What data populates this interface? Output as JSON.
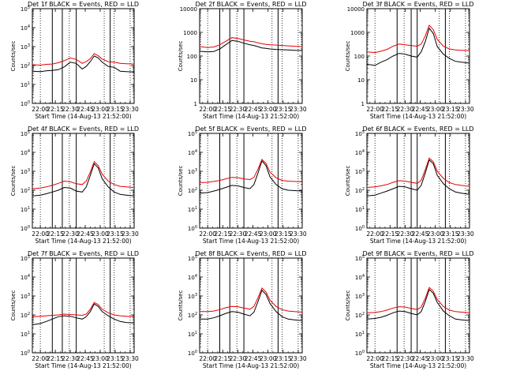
{
  "figure": {
    "x_axis_label": "Start Time (14-Aug-13 21:52:00)",
    "y_axis_label": "Counts/sec",
    "time_ticks": [
      "22:00",
      "22:15",
      "22:30",
      "22:45",
      "23:00",
      "23:15",
      "23:30"
    ],
    "colors": {
      "events": "#000000",
      "lld": "#e60000"
    }
  },
  "chart_data": [
    {
      "type": "line",
      "title": "Det 1f BLACK = Events, RED = LLD",
      "xlabel": "Start Time (14-Aug-13 21:52:00)",
      "ylabel": "Counts/sec",
      "xlim": [
        "21:52",
        "23:34"
      ],
      "ylim": [
        1,
        100000
      ],
      "yscale": "log",
      "ytick_exponents": [
        0,
        1,
        2,
        3,
        4,
        5
      ],
      "ytick_labels": [
        "10^0",
        "10^1",
        "10^2",
        "10^3",
        "10^4",
        "10^5"
      ],
      "x": [
        "21:52",
        "22:00",
        "22:06",
        "22:12",
        "22:18",
        "22:24",
        "22:30",
        "22:36",
        "22:42",
        "22:46",
        "22:50",
        "22:54",
        "22:58",
        "23:02",
        "23:08",
        "23:14",
        "23:20",
        "23:26",
        "23:34"
      ],
      "series": [
        {
          "name": "BLACK = Events",
          "values": [
            50,
            48,
            52,
            55,
            60,
            85,
            150,
            130,
            65,
            90,
            160,
            320,
            250,
            150,
            90,
            80,
            50,
            48,
            45
          ]
        },
        {
          "name": "RED = LLD",
          "values": [
            110,
            105,
            115,
            120,
            140,
            180,
            250,
            210,
            130,
            160,
            230,
            420,
            330,
            220,
            160,
            150,
            130,
            125,
            120
          ]
        }
      ],
      "vlines_solid": [
        "22:12",
        "22:22",
        "22:36",
        "23:10"
      ],
      "vlines_dotted": [
        "22:00",
        "22:29",
        "23:04",
        "23:14",
        "23:30"
      ]
    },
    {
      "type": "line",
      "title": "Det 2f BLACK = Events, RED = LLD",
      "xlabel": "Start Time (14-Aug-13 21:52:00)",
      "ylabel": "Counts/sec",
      "xlim": [
        "21:52",
        "23:34"
      ],
      "ylim": [
        1,
        10000
      ],
      "yscale": "log",
      "ytick_labels": [
        "1",
        "10",
        "100",
        "1000",
        "10000"
      ],
      "x": [
        "21:52",
        "22:00",
        "22:06",
        "22:12",
        "22:18",
        "22:24",
        "22:30",
        "22:36",
        "22:42",
        "22:46",
        "22:50",
        "22:54",
        "22:58",
        "23:02",
        "23:08",
        "23:14",
        "23:20",
        "23:26",
        "23:34"
      ],
      "series": [
        {
          "name": "BLACK = Events",
          "values": [
            160,
            150,
            155,
            200,
            300,
            450,
            420,
            350,
            300,
            280,
            250,
            220,
            210,
            200,
            190,
            185,
            180,
            175,
            170
          ]
        },
        {
          "name": "RED = LLD",
          "values": [
            250,
            230,
            240,
            300,
            420,
            600,
            560,
            480,
            420,
            400,
            360,
            330,
            310,
            300,
            290,
            280,
            270,
            260,
            250
          ]
        }
      ],
      "vlines_solid": [
        "22:12",
        "22:22",
        "22:36",
        "23:10"
      ],
      "vlines_dotted": [
        "22:00",
        "22:29",
        "23:04",
        "23:14",
        "23:30"
      ]
    },
    {
      "type": "line",
      "title": "Det 3f BLACK = Events, RED = LLD",
      "xlabel": "Start Time (14-Aug-13 21:52:00)",
      "ylabel": "Counts/sec",
      "xlim": [
        "21:52",
        "23:34"
      ],
      "ylim": [
        1,
        10000
      ],
      "yscale": "log",
      "ytick_labels": [
        "1",
        "10",
        "100",
        "1000",
        "10000"
      ],
      "x": [
        "21:52",
        "22:00",
        "22:06",
        "22:12",
        "22:18",
        "22:24",
        "22:30",
        "22:36",
        "22:42",
        "22:46",
        "22:50",
        "22:54",
        "22:58",
        "23:02",
        "23:08",
        "23:14",
        "23:20",
        "23:26",
        "23:34"
      ],
      "series": [
        {
          "name": "BLACK = Events",
          "values": [
            45,
            40,
            55,
            70,
            100,
            130,
            120,
            100,
            90,
            150,
            400,
            1500,
            900,
            250,
            120,
            80,
            60,
            55,
            50
          ]
        },
        {
          "name": "RED = LLD",
          "values": [
            150,
            140,
            160,
            190,
            260,
            320,
            300,
            280,
            260,
            320,
            700,
            2000,
            1300,
            500,
            260,
            200,
            180,
            175,
            170
          ]
        }
      ],
      "vlines_solid": [
        "22:22",
        "22:36",
        "22:42",
        "23:10"
      ],
      "vlines_dotted": [
        "22:00",
        "22:29",
        "23:04",
        "23:14",
        "23:30"
      ]
    },
    {
      "type": "line",
      "title": "Det 4f BLACK = Events, RED = LLD",
      "xlabel": "Start Time (14-Aug-13 21:52:00)",
      "ylabel": "Counts/sec",
      "xlim": [
        "21:52",
        "23:34"
      ],
      "ylim": [
        1,
        100000
      ],
      "yscale": "log",
      "ytick_exponents": [
        0,
        1,
        2,
        3,
        4,
        5
      ],
      "ytick_labels": [
        "10^0",
        "10^1",
        "10^2",
        "10^3",
        "10^4",
        "10^5"
      ],
      "x": [
        "21:52",
        "22:00",
        "22:06",
        "22:12",
        "22:18",
        "22:24",
        "22:30",
        "22:36",
        "22:42",
        "22:46",
        "22:50",
        "22:54",
        "22:58",
        "23:02",
        "23:08",
        "23:14",
        "23:20",
        "23:26",
        "23:34"
      ],
      "series": [
        {
          "name": "BLACK = Events",
          "values": [
            50,
            55,
            65,
            80,
            100,
            140,
            130,
            90,
            80,
            150,
            600,
            2500,
            1500,
            400,
            150,
            80,
            60,
            55,
            50
          ]
        },
        {
          "name": "RED = LLD",
          "values": [
            120,
            130,
            150,
            180,
            230,
            300,
            280,
            220,
            200,
            300,
            900,
            3200,
            2000,
            700,
            300,
            200,
            160,
            150,
            140
          ]
        }
      ],
      "vlines_solid": [
        "22:12",
        "22:22",
        "22:36",
        "23:10"
      ],
      "vlines_dotted": [
        "22:00",
        "22:29",
        "23:04",
        "23:14",
        "23:30"
      ]
    },
    {
      "type": "line",
      "title": "Det 5f BLACK = Events, RED = LLD",
      "xlabel": "Start Time (14-Aug-13 21:52:00)",
      "ylabel": "Counts/sec",
      "xlim": [
        "21:52",
        "23:34"
      ],
      "ylim": [
        1,
        100000
      ],
      "yscale": "log",
      "ytick_exponents": [
        0,
        1,
        2,
        3,
        4,
        5
      ],
      "ytick_labels": [
        "10^0",
        "10^1",
        "10^2",
        "10^3",
        "10^4",
        "10^5"
      ],
      "x": [
        "21:52",
        "22:00",
        "22:06",
        "22:12",
        "22:18",
        "22:24",
        "22:30",
        "22:36",
        "22:42",
        "22:46",
        "22:50",
        "22:54",
        "22:58",
        "23:02",
        "23:08",
        "23:14",
        "23:20",
        "23:26",
        "23:34"
      ],
      "series": [
        {
          "name": "BLACK = Events",
          "values": [
            70,
            75,
            90,
            110,
            140,
            180,
            170,
            140,
            120,
            200,
            800,
            3500,
            2000,
            500,
            200,
            120,
            100,
            95,
            90
          ]
        },
        {
          "name": "RED = LLD",
          "values": [
            250,
            260,
            290,
            330,
            400,
            480,
            460,
            400,
            360,
            480,
            1300,
            4200,
            2600,
            900,
            450,
            330,
            300,
            290,
            280
          ]
        }
      ],
      "vlines_solid": [
        "22:12",
        "22:22",
        "22:36",
        "23:10"
      ],
      "vlines_dotted": [
        "22:00",
        "22:29",
        "23:04",
        "23:14",
        "23:30"
      ]
    },
    {
      "type": "line",
      "title": "Det 6f BLACK = Events, RED = LLD",
      "xlabel": "Start Time (14-Aug-13 21:52:00)",
      "ylabel": "Counts/sec",
      "xlim": [
        "21:52",
        "23:34"
      ],
      "ylim": [
        1,
        100000
      ],
      "yscale": "log",
      "ytick_exponents": [
        0,
        1,
        2,
        3,
        4,
        5
      ],
      "ytick_labels": [
        "10^0",
        "10^1",
        "10^2",
        "10^3",
        "10^4",
        "10^5"
      ],
      "x": [
        "21:52",
        "22:00",
        "22:06",
        "22:12",
        "22:18",
        "22:24",
        "22:30",
        "22:36",
        "22:42",
        "22:46",
        "22:50",
        "22:54",
        "22:58",
        "23:02",
        "23:08",
        "23:14",
        "23:20",
        "23:26",
        "23:34"
      ],
      "series": [
        {
          "name": "BLACK = Events",
          "values": [
            50,
            55,
            70,
            90,
            120,
            160,
            150,
            120,
            100,
            180,
            800,
            4000,
            2500,
            600,
            220,
            120,
            80,
            70,
            60
          ]
        },
        {
          "name": "RED = LLD",
          "values": [
            140,
            150,
            170,
            200,
            260,
            320,
            300,
            260,
            230,
            330,
            1200,
            5000,
            3200,
            1000,
            420,
            250,
            200,
            180,
            160
          ]
        }
      ],
      "vlines_solid": [
        "22:22",
        "22:36",
        "22:42",
        "23:10"
      ],
      "vlines_dotted": [
        "22:00",
        "22:29",
        "23:04",
        "23:14",
        "23:30"
      ]
    },
    {
      "type": "line",
      "title": "Det 7f BLACK = Events, RED = LLD",
      "xlabel": "Start Time (14-Aug-13 21:52:00)",
      "ylabel": "Counts/sec",
      "xlim": [
        "21:52",
        "23:34"
      ],
      "ylim": [
        1,
        100000
      ],
      "yscale": "log",
      "ytick_exponents": [
        0,
        1,
        2,
        3,
        4,
        5
      ],
      "ytick_labels": [
        "10^0",
        "10^1",
        "10^2",
        "10^3",
        "10^4",
        "10^5"
      ],
      "x": [
        "21:52",
        "22:00",
        "22:06",
        "22:12",
        "22:18",
        "22:24",
        "22:30",
        "22:36",
        "22:42",
        "22:46",
        "22:50",
        "22:54",
        "22:58",
        "23:02",
        "23:08",
        "23:14",
        "23:20",
        "23:26",
        "23:34"
      ],
      "series": [
        {
          "name": "BLACK = Events",
          "values": [
            30,
            35,
            45,
            60,
            80,
            90,
            85,
            70,
            60,
            80,
            150,
            380,
            280,
            150,
            90,
            60,
            45,
            40,
            38
          ]
        },
        {
          "name": "RED = LLD",
          "values": [
            80,
            85,
            90,
            95,
            100,
            110,
            105,
            100,
            95,
            110,
            200,
            450,
            350,
            200,
            130,
            100,
            90,
            85,
            80
          ]
        }
      ],
      "vlines_solid": [
        "22:12",
        "22:22",
        "22:36",
        "23:10"
      ],
      "vlines_dotted": [
        "22:00",
        "22:29",
        "23:04",
        "23:14",
        "23:30"
      ]
    },
    {
      "type": "line",
      "title": "Det 8f BLACK = Events, RED = LLD",
      "xlabel": "Start Time (14-Aug-13 21:52:00)",
      "ylabel": "Counts/sec",
      "xlim": [
        "21:52",
        "23:34"
      ],
      "ylim": [
        1,
        100000
      ],
      "yscale": "log",
      "ytick_exponents": [
        0,
        1,
        2,
        3,
        4,
        5
      ],
      "ytick_labels": [
        "10^0",
        "10^1",
        "10^2",
        "10^3",
        "10^4",
        "10^5"
      ],
      "x": [
        "21:52",
        "22:00",
        "22:06",
        "22:12",
        "22:18",
        "22:24",
        "22:30",
        "22:36",
        "22:42",
        "22:46",
        "22:50",
        "22:54",
        "22:58",
        "23:02",
        "23:08",
        "23:14",
        "23:20",
        "23:26",
        "23:34"
      ],
      "series": [
        {
          "name": "BLACK = Events",
          "values": [
            60,
            60,
            70,
            90,
            120,
            150,
            140,
            110,
            90,
            140,
            500,
            2000,
            1200,
            400,
            150,
            80,
            60,
            55,
            50
          ]
        },
        {
          "name": "RED = LLD",
          "values": [
            150,
            150,
            160,
            190,
            240,
            280,
            270,
            230,
            200,
            280,
            800,
            2600,
            1600,
            600,
            280,
            190,
            160,
            150,
            140
          ]
        }
      ],
      "vlines_solid": [
        "22:12",
        "22:22",
        "22:36",
        "23:10"
      ],
      "vlines_dotted": [
        "22:00",
        "22:29",
        "23:04",
        "23:14",
        "23:30"
      ]
    },
    {
      "type": "line",
      "title": "Det 9f BLACK = Events, RED = LLD",
      "xlabel": "Start Time (14-Aug-13 21:52:00)",
      "ylabel": "Counts/sec",
      "xlim": [
        "21:52",
        "23:34"
      ],
      "ylim": [
        1,
        100000
      ],
      "yscale": "log",
      "ytick_exponents": [
        0,
        1,
        2,
        3,
        4,
        5
      ],
      "ytick_labels": [
        "10^0",
        "10^1",
        "10^2",
        "10^3",
        "10^4",
        "10^5"
      ],
      "x": [
        "21:52",
        "22:00",
        "22:06",
        "22:12",
        "22:18",
        "22:24",
        "22:30",
        "22:36",
        "22:42",
        "22:46",
        "22:50",
        "22:54",
        "22:58",
        "23:02",
        "23:08",
        "23:14",
        "23:20",
        "23:26",
        "23:34"
      ],
      "series": [
        {
          "name": "BLACK = Events",
          "values": [
            60,
            65,
            75,
            95,
            130,
            160,
            150,
            120,
            100,
            150,
            500,
            2200,
            1400,
            450,
            160,
            90,
            60,
            55,
            50
          ]
        },
        {
          "name": "RED = LLD",
          "values": [
            130,
            135,
            150,
            180,
            230,
            270,
            260,
            220,
            190,
            260,
            750,
            2800,
            1800,
            650,
            280,
            180,
            150,
            140,
            130
          ]
        }
      ],
      "vlines_solid": [
        "22:22",
        "22:36",
        "22:42",
        "23:10"
      ],
      "vlines_dotted": [
        "22:00",
        "22:29",
        "23:04",
        "23:14",
        "23:30"
      ]
    }
  ]
}
